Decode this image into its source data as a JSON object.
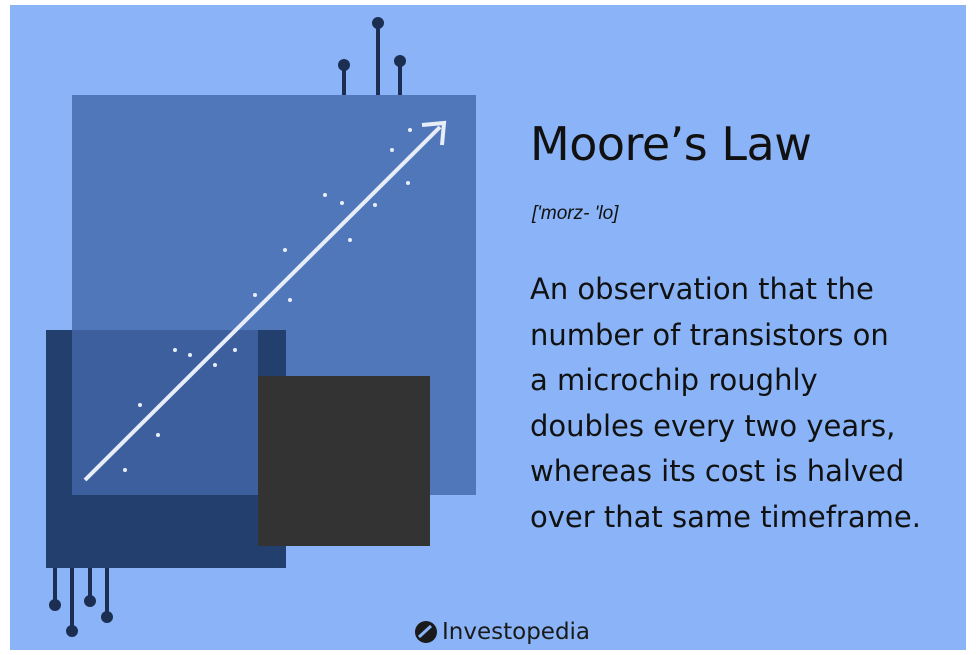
{
  "title": "Moore’s Law",
  "pronunciation": "['morz- 'lo]",
  "definition": [
    "An observation that the",
    "number of transistors on",
    "a microchip roughly",
    "doubles every two years,",
    "whereas its cost is halved",
    "over that same timeframe."
  ],
  "brand": "Investopedia"
}
